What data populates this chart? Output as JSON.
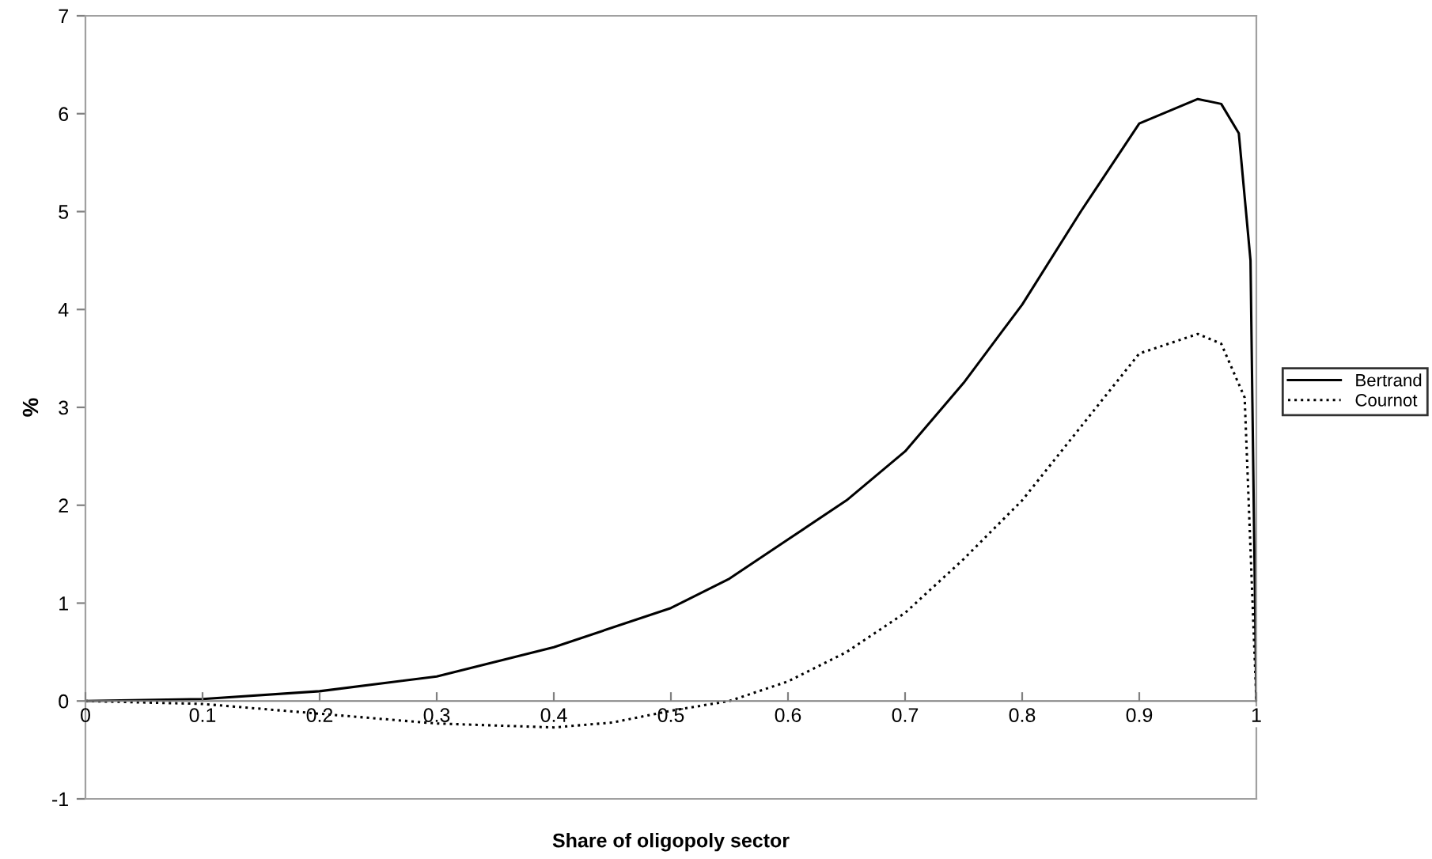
{
  "chart_data": {
    "type": "line",
    "xlabel": "Share of oligopoly sector",
    "ylabel": "%",
    "xlim": [
      0,
      1
    ],
    "xticks": [
      0,
      0.1,
      0.2,
      0.3,
      0.4,
      0.5,
      0.6,
      0.7,
      0.8,
      0.9,
      1
    ],
    "ylim": [
      -1,
      7
    ],
    "yticks": [
      -1,
      0,
      1,
      2,
      3,
      4,
      5,
      6,
      7
    ],
    "grid": false,
    "legend": "right",
    "marker": "none",
    "series": [
      {
        "name": "Bertrand",
        "color": "#000000",
        "line_style": "solid",
        "x": [
          0,
          0.1,
          0.2,
          0.3,
          0.4,
          0.5,
          0.55,
          0.6,
          0.65,
          0.7,
          0.75,
          0.8,
          0.85,
          0.9,
          0.95,
          0.97,
          0.985,
          0.995,
          1.0
        ],
        "values": [
          0,
          0.02,
          0.1,
          0.25,
          0.55,
          0.95,
          1.25,
          1.65,
          2.05,
          2.55,
          3.25,
          4.05,
          5.0,
          5.9,
          6.15,
          6.1,
          5.8,
          4.5,
          0
        ]
      },
      {
        "name": "Cournot",
        "color": "#000000",
        "line_style": "dotted",
        "x": [
          0,
          0.1,
          0.2,
          0.3,
          0.4,
          0.45,
          0.5,
          0.55,
          0.6,
          0.65,
          0.7,
          0.75,
          0.8,
          0.85,
          0.9,
          0.95,
          0.97,
          0.99,
          1.0
        ],
        "values": [
          0,
          -0.03,
          -0.13,
          -0.23,
          -0.27,
          -0.22,
          -0.1,
          0.0,
          0.2,
          0.5,
          0.9,
          1.45,
          2.05,
          2.8,
          3.55,
          3.75,
          3.65,
          3.1,
          0
        ]
      }
    ]
  }
}
